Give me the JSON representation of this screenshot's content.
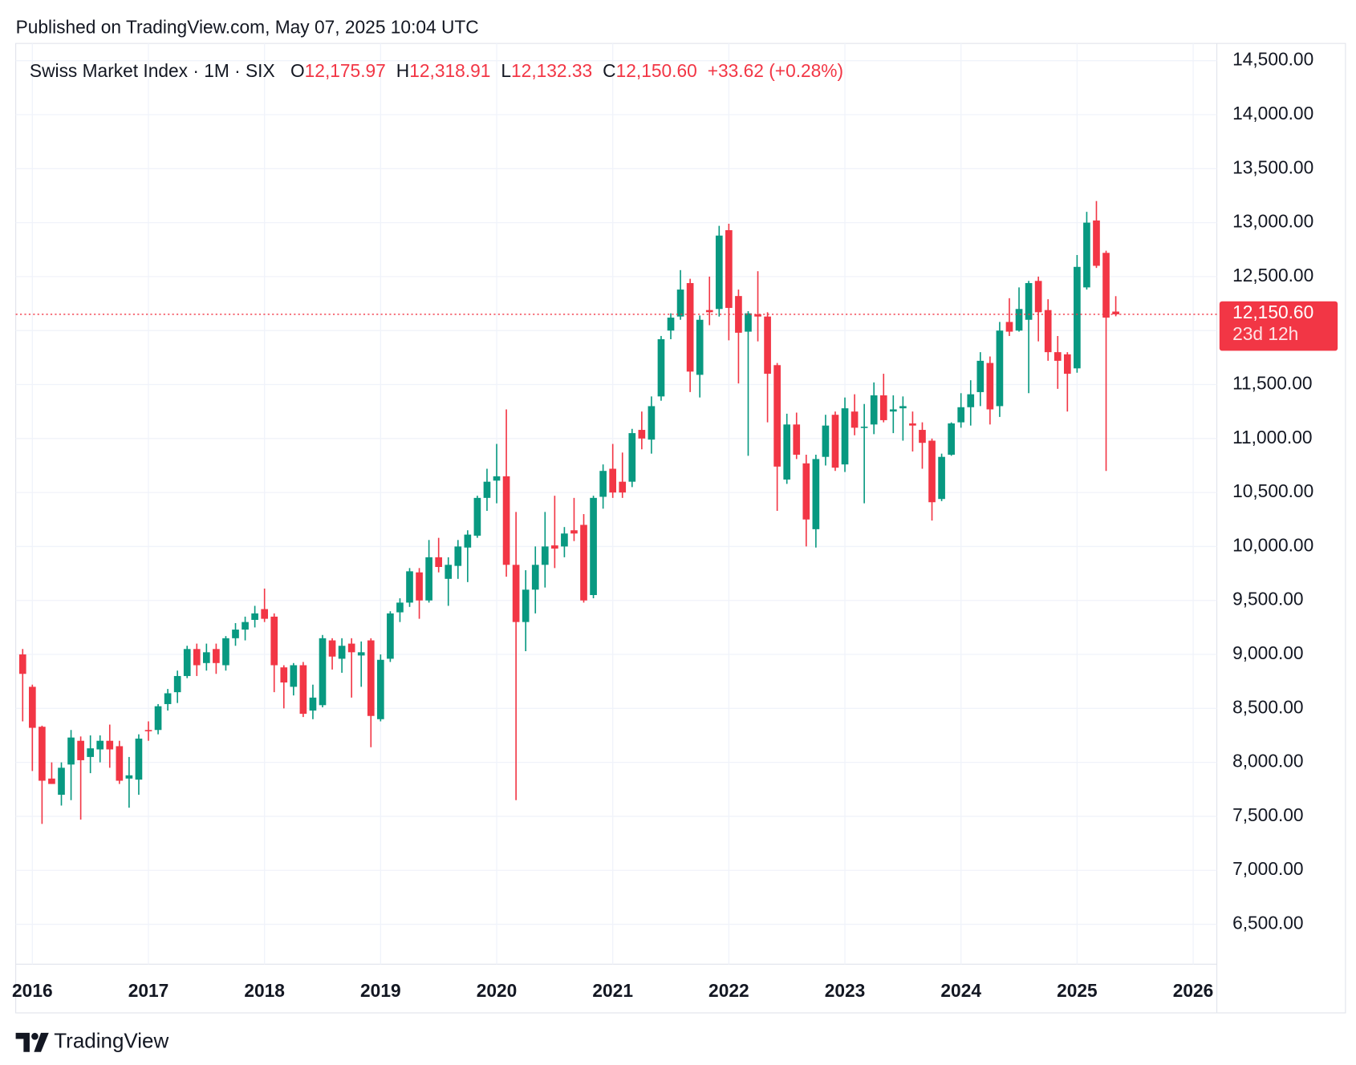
{
  "published": "Published on TradingView.com, May 07, 2025 10:04 UTC",
  "brand": "TradingView",
  "chart_data": {
    "type": "candlestick",
    "symbol": "Swiss Market Index · 1M · SIX",
    "ohlc_labels": [
      {
        "key": "O",
        "value": "12,175.97"
      },
      {
        "key": "H",
        "value": "12,318.91"
      },
      {
        "key": "L",
        "value": "12,132.33"
      },
      {
        "key": "C",
        "value": "12,150.60"
      }
    ],
    "change_label": "+33.62 (+0.28%)",
    "last_price_label": "12,150.60",
    "countdown": "23d 12h",
    "up_color": "#089981",
    "down_color": "#f23645",
    "grid": true,
    "x": [
      "2015-12",
      "2016-01",
      "2016-02",
      "2016-03",
      "2016-04",
      "2016-05",
      "2016-06",
      "2016-07",
      "2016-08",
      "2016-09",
      "2016-10",
      "2016-11",
      "2016-12",
      "2017-01",
      "2017-02",
      "2017-03",
      "2017-04",
      "2017-05",
      "2017-06",
      "2017-07",
      "2017-08",
      "2017-09",
      "2017-10",
      "2017-11",
      "2017-12",
      "2018-01",
      "2018-02",
      "2018-03",
      "2018-04",
      "2018-05",
      "2018-06",
      "2018-07",
      "2018-08",
      "2018-09",
      "2018-10",
      "2018-11",
      "2018-12",
      "2019-01",
      "2019-02",
      "2019-03",
      "2019-04",
      "2019-05",
      "2019-06",
      "2019-07",
      "2019-08",
      "2019-09",
      "2019-10",
      "2019-11",
      "2019-12",
      "2020-01",
      "2020-02",
      "2020-03",
      "2020-04",
      "2020-05",
      "2020-06",
      "2020-07",
      "2020-08",
      "2020-09",
      "2020-10",
      "2020-11",
      "2020-12",
      "2021-01",
      "2021-02",
      "2021-03",
      "2021-04",
      "2021-05",
      "2021-06",
      "2021-07",
      "2021-08",
      "2021-09",
      "2021-10",
      "2021-11",
      "2021-12",
      "2022-01",
      "2022-02",
      "2022-03",
      "2022-04",
      "2022-05",
      "2022-06",
      "2022-07",
      "2022-08",
      "2022-09",
      "2022-10",
      "2022-11",
      "2022-12",
      "2023-01",
      "2023-02",
      "2023-03",
      "2023-04",
      "2023-05",
      "2023-06",
      "2023-07",
      "2023-08",
      "2023-09",
      "2023-10",
      "2023-11",
      "2023-12",
      "2024-01",
      "2024-02",
      "2024-03",
      "2024-04",
      "2024-05",
      "2024-06",
      "2024-07",
      "2024-08",
      "2024-09",
      "2024-10",
      "2024-11",
      "2024-12",
      "2025-01",
      "2025-02",
      "2025-03",
      "2025-04",
      "2025-05"
    ],
    "open": [
      9000,
      8700,
      8330,
      7850,
      7700,
      7980,
      8200,
      8050,
      8120,
      8200,
      8150,
      7850,
      7840,
      8300,
      8300,
      8540,
      8650,
      8800,
      9050,
      8920,
      9050,
      8900,
      9150,
      9230,
      9320,
      9420,
      9350,
      8880,
      8700,
      8900,
      8480,
      8530,
      9130,
      8960,
      9100,
      8990,
      9130,
      8400,
      8960,
      9390,
      9480,
      9760,
      9500,
      9900,
      9700,
      9820,
      9990,
      10100,
      10450,
      10610,
      10650,
      9830,
      9300,
      9600,
      9830,
      10010,
      10000,
      10150,
      10200,
      9550,
      10460,
      10720,
      10600,
      10600,
      11080,
      10990,
      11390,
      12000,
      12130,
      12440,
      11590,
      12190,
      12200,
      12930,
      12320,
      11990,
      12150,
      12130,
      11680,
      10620,
      11130,
      10770,
      10160,
      10830,
      11220,
      10760,
      11250,
      11100,
      11130,
      11400,
      11250,
      11280,
      11140,
      11080,
      10980,
      10440,
      10850,
      11150,
      11290,
      11430,
      11700,
      11300,
      12080,
      12000,
      12100,
      12460,
      12190,
      11800,
      11780,
      11650,
      12400,
      13020,
      12720,
      12175.97
    ],
    "high": [
      9050,
      8720,
      8340,
      8000,
      8000,
      8300,
      8240,
      8250,
      8250,
      8350,
      8200,
      8050,
      8260,
      8380,
      8540,
      8680,
      8850,
      9080,
      9100,
      9100,
      9100,
      9170,
      9290,
      9350,
      9450,
      9610,
      9380,
      8900,
      8920,
      8930,
      8720,
      9180,
      9150,
      9150,
      9150,
      9120,
      9150,
      9000,
      9400,
      9520,
      9800,
      9800,
      10060,
      10080,
      9900,
      10060,
      10150,
      10470,
      10720,
      10950,
      11270,
      10320,
      9780,
      10000,
      10320,
      10470,
      10180,
      10450,
      10300,
      10470,
      10760,
      10950,
      10870,
      11090,
      11250,
      11390,
      11950,
      12160,
      12560,
      12480,
      12140,
      12500,
      12970,
      12990,
      12380,
      12180,
      12550,
      12170,
      11700,
      11230,
      11240,
      10850,
      10850,
      11220,
      11250,
      11380,
      11410,
      11320,
      11520,
      11600,
      11400,
      11390,
      11250,
      11150,
      11000,
      10860,
      11150,
      11420,
      11540,
      11800,
      11760,
      12080,
      12300,
      12400,
      12460,
      12500,
      12290,
      11950,
      11800,
      12700,
      13100,
      13200,
      12740,
      12318.91
    ],
    "low": [
      8380,
      7920,
      7430,
      7800,
      7600,
      7650,
      7470,
      7900,
      8000,
      7950,
      7800,
      7580,
      7700,
      8200,
      8260,
      8480,
      8550,
      8780,
      8800,
      8850,
      8820,
      8850,
      9080,
      9130,
      9250,
      9300,
      8650,
      8500,
      8620,
      8420,
      8400,
      8510,
      8860,
      8830,
      8600,
      8700,
      8140,
      8380,
      8930,
      9300,
      9440,
      9330,
      9480,
      9760,
      9450,
      9700,
      9670,
      10080,
      10330,
      10400,
      9720,
      7650,
      9030,
      9380,
      9620,
      9800,
      9900,
      10050,
      9480,
      9520,
      10350,
      10450,
      10450,
      10550,
      10900,
      10860,
      11350,
      11920,
      12100,
      11430,
      11380,
      12050,
      12130,
      11910,
      11510,
      10840,
      11900,
      11150,
      10330,
      10580,
      10810,
      10000,
      9990,
      10750,
      10700,
      10690,
      11030,
      10400,
      11040,
      11150,
      11050,
      10980,
      10880,
      10720,
      10240,
      10420,
      10840,
      11100,
      11120,
      11300,
      11130,
      11200,
      11950,
      11990,
      11420,
      11900,
      11720,
      11460,
      11250,
      11610,
      12380,
      12580,
      10700,
      12132.33
    ],
    "close": [
      8820,
      8320,
      7830,
      7800,
      7950,
      8230,
      8020,
      8130,
      8200,
      8120,
      7830,
      7880,
      8220,
      8290,
      8520,
      8640,
      8800,
      9050,
      8900,
      9020,
      8920,
      9150,
      9230,
      9300,
      9380,
      9330,
      8900,
      8740,
      8900,
      8450,
      8600,
      9150,
      8980,
      9080,
      9020,
      9020,
      8430,
      8950,
      9380,
      9480,
      9770,
      9500,
      9900,
      9810,
      9830,
      10000,
      10110,
      10450,
      10600,
      10650,
      9830,
      9300,
      9600,
      9830,
      10000,
      9980,
      10120,
      10120,
      9500,
      10450,
      10700,
      10500,
      10500,
      11050,
      11000,
      11300,
      11920,
      12120,
      12380,
      11620,
      12100,
      12170,
      12880,
      12210,
      11980,
      12160,
      12130,
      11600,
      10740,
      11130,
      10850,
      10250,
      10810,
      11120,
      10730,
      11280,
      11100,
      11110,
      11400,
      11170,
      11270,
      11300,
      11120,
      10960,
      10410,
      10830,
      11140,
      11290,
      11410,
      11720,
      11270,
      12000,
      11990,
      12200,
      12440,
      12170,
      11800,
      11720,
      11600,
      12590,
      13000,
      12600,
      12120,
      12150.6
    ],
    "ylim": [
      6130,
      14660
    ],
    "yticks": [
      {
        "value": 6500,
        "label": "6,500.00"
      },
      {
        "value": 7000,
        "label": "7,000.00"
      },
      {
        "value": 7500,
        "label": "7,500.00"
      },
      {
        "value": 8000,
        "label": "8,000.00"
      },
      {
        "value": 8500,
        "label": "8,500.00"
      },
      {
        "value": 9000,
        "label": "9,000.00"
      },
      {
        "value": 9500,
        "label": "9,500.00"
      },
      {
        "value": 10000,
        "label": "10,000.00"
      },
      {
        "value": 10500,
        "label": "10,500.00"
      },
      {
        "value": 11000,
        "label": "11,000.00"
      },
      {
        "value": 11500,
        "label": "11,500.00"
      },
      {
        "value": 12000,
        "label": "12,000.00"
      },
      {
        "value": 12500,
        "label": "12,500.00"
      },
      {
        "value": 13000,
        "label": "13,000.00"
      },
      {
        "value": 13500,
        "label": "13,500.00"
      },
      {
        "value": 14000,
        "label": "14,000.00"
      },
      {
        "value": 14500,
        "label": "14,500.00"
      }
    ],
    "xticks": [
      2016,
      2017,
      2018,
      2019,
      2020,
      2021,
      2022,
      2023,
      2024,
      2025,
      2026
    ]
  }
}
